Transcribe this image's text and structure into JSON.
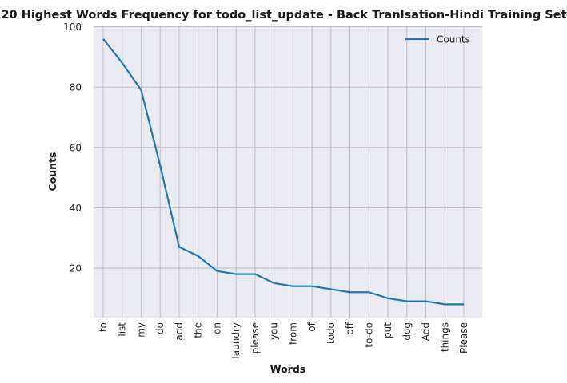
{
  "chart_data": {
    "type": "line",
    "title": "20 Highest Words Frequency for todo_list_update - Back Tranlsation-Hindi Training Set",
    "xlabel": "Words",
    "ylabel": "Counts",
    "categories": [
      "to",
      "list",
      "my",
      "do",
      "add",
      "the",
      "on",
      "laundry",
      "please",
      "you",
      "from",
      "of",
      "todo",
      "off",
      "to-do",
      "put",
      "dog",
      "Add",
      "things",
      "Please"
    ],
    "series": [
      {
        "name": "Counts",
        "values": [
          96,
          88,
          79,
          54,
          27,
          24,
          19,
          18,
          18,
          15,
          14,
          14,
          13,
          12,
          12,
          10,
          9,
          9,
          8,
          8
        ],
        "color": "#1f77b4"
      }
    ],
    "yticks": [
      20,
      40,
      60,
      80,
      100
    ],
    "ylim": [
      3.6,
      100.4
    ],
    "grid": true,
    "legend": "top-right",
    "colors": {
      "plot_background": "#eaeaf2",
      "grid": "#c0c0c0",
      "line": "#1f77b4"
    }
  }
}
